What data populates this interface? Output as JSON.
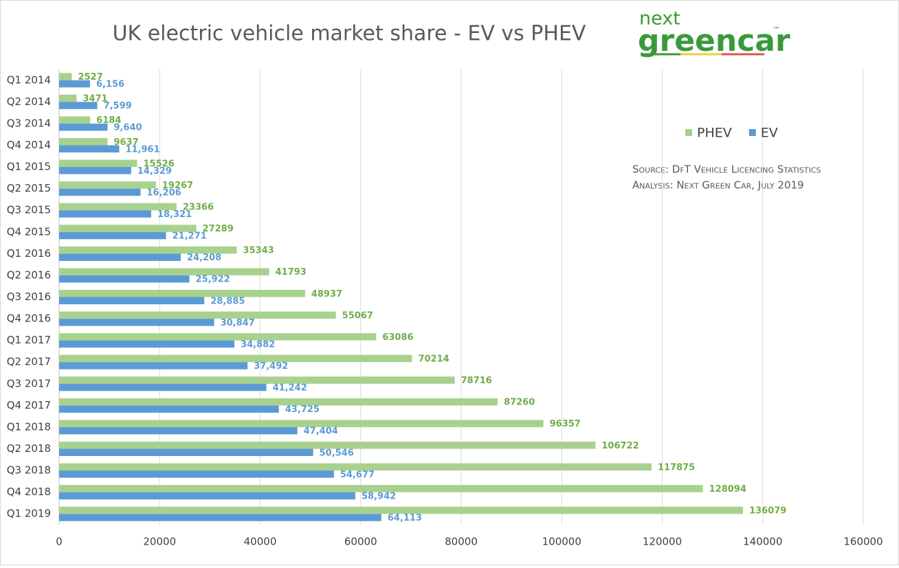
{
  "chart_data": {
    "type": "hbar",
    "title": "UK electric vehicle market share - EV vs PHEV",
    "logo": {
      "top": "next",
      "main": "greencar",
      "mark": "™"
    },
    "notes": [
      "Source: DfT Vehicle Licencing Statistics",
      "Analysis: Next Green Car, July 2019"
    ],
    "categories": [
      "Q1 2014",
      "Q2 2014",
      "Q3 2014",
      "Q4 2014",
      "Q1 2015",
      "Q2 2015",
      "Q3 2015",
      "Q4 2015",
      "Q1 2016",
      "Q2 2016",
      "Q3 2016",
      "Q4 2016",
      "Q1 2017",
      "Q2 2017",
      "Q3 2017",
      "Q4 2017",
      "Q1 2018",
      "Q2 2018",
      "Q3 2018",
      "Q4 2018",
      "Q1 2019"
    ],
    "series": [
      {
        "name": "PHEV",
        "color": "#a9d18e",
        "label_color": "#70ad47",
        "values": [
          2527,
          3471,
          6184,
          9637,
          15526,
          19267,
          23366,
          27289,
          35343,
          41793,
          48937,
          55067,
          63086,
          70214,
          78716,
          87260,
          96357,
          106722,
          117875,
          128094,
          136079
        ]
      },
      {
        "name": "EV",
        "color": "#5b9bd5",
        "label_color": "#5b9bd5",
        "values": [
          6156,
          7599,
          9640,
          11961,
          14329,
          16206,
          18321,
          21271,
          24208,
          25922,
          28885,
          30847,
          34882,
          37492,
          41242,
          43725,
          47404,
          50546,
          54677,
          58942,
          64113
        ],
        "value_labels": [
          "6,156",
          "7,599",
          "9,640",
          "11,961",
          "14,329",
          "16,206",
          "18,321",
          "21,271",
          "24,208",
          "25,922",
          "28,885",
          "30,847",
          "34,882",
          "37,492",
          "41,242",
          "43,725",
          "47,404",
          "50,546",
          "54,677",
          "58,942",
          "64,113"
        ]
      }
    ],
    "xlim": [
      0,
      160000
    ],
    "xticks": [
      0,
      20000,
      40000,
      60000,
      80000,
      100000,
      120000,
      140000,
      160000
    ],
    "grid": true,
    "legend": "right"
  }
}
